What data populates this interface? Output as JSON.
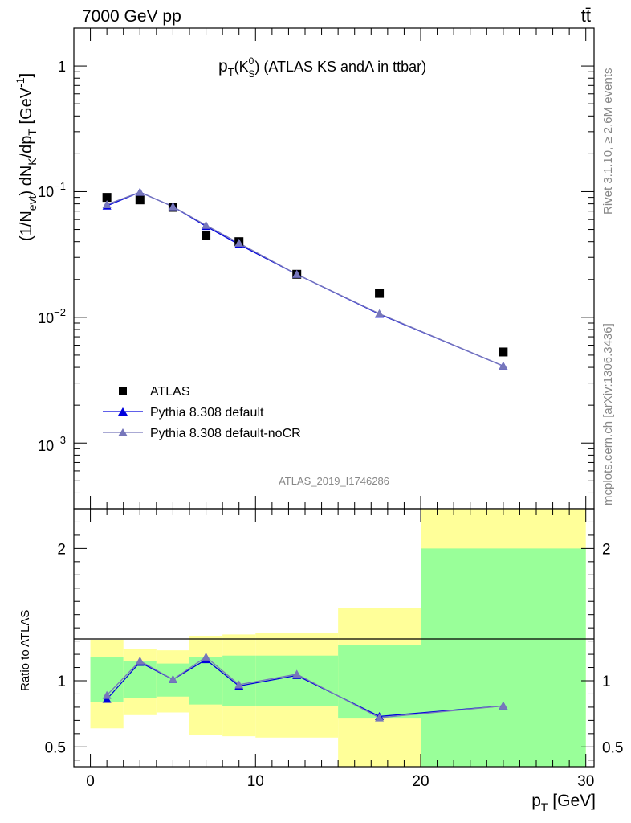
{
  "header": {
    "left": "7000 GeV pp",
    "right": "tt̄"
  },
  "side": {
    "rivet": "Rivet 3.1.10, ≥ 2.6M events",
    "mcplots": "mcplots.cern.ch [arXiv:1306.3436]"
  },
  "analysis_id": "ATLAS_2019_I1746286",
  "chart_data": [
    {
      "type": "line",
      "title": "p_T(K_S^0) (ATLAS KS and Λ in ttbar)",
      "ylabel": "(1/N_evt) dN_K/dp_T [GeV^-1]",
      "yscale": "log",
      "ylim": [
        0.0003,
        2.0
      ],
      "xlim": [
        -1,
        30.5
      ],
      "y_tick_labels": [
        "10^-3",
        "10^-2",
        "10^-1",
        "1"
      ],
      "legend_position": "bottom-left",
      "colors": {
        "data": "#000000",
        "default": "#0000dd",
        "noCR": "#7777bb"
      },
      "series": [
        {
          "name": "ATLAS",
          "style": "markers",
          "x": [
            1,
            3,
            5,
            7,
            9,
            12.5,
            17.5,
            25
          ],
          "y": [
            0.09,
            0.086,
            0.075,
            0.045,
            0.04,
            0.022,
            0.0155,
            0.0053
          ]
        },
        {
          "name": "Pythia 8.308 default",
          "style": "line-markers",
          "x": [
            1,
            3,
            5,
            7,
            9,
            12.5,
            17.5,
            25
          ],
          "y": [
            0.077,
            0.099,
            0.076,
            0.053,
            0.038,
            0.022,
            0.0106,
            0.0041
          ]
        },
        {
          "name": "Pythia 8.308 default-noCR",
          "style": "line-markers",
          "x": [
            1,
            3,
            5,
            7,
            9,
            12.5,
            17.5,
            25
          ],
          "y": [
            0.079,
            0.099,
            0.076,
            0.054,
            0.039,
            0.022,
            0.0107,
            0.0041
          ]
        }
      ]
    },
    {
      "type": "line",
      "ylabel": "Ratio to ATLAS",
      "xlabel": "p_T [GeV]",
      "ylim": [
        0.35,
        2.3
      ],
      "xlim": [
        -1,
        30.5
      ],
      "y_ticks": [
        0.5,
        1,
        2
      ],
      "x_ticks": [
        0,
        10,
        20,
        30
      ],
      "reference_line": 1,
      "colors": {
        "inner_band": "#99ff99",
        "outer_band": "#ffff99"
      },
      "bins": [
        {
          "lo": 0,
          "hi": 2,
          "inner": [
            0.84,
            1.18
          ],
          "outer": [
            0.64,
            1.31
          ]
        },
        {
          "lo": 2,
          "hi": 4,
          "inner": [
            0.87,
            1.15
          ],
          "outer": [
            0.74,
            1.24
          ]
        },
        {
          "lo": 4,
          "hi": 6,
          "inner": [
            0.88,
            1.13
          ],
          "outer": [
            0.76,
            1.23
          ]
        },
        {
          "lo": 6,
          "hi": 8,
          "inner": [
            0.82,
            1.18
          ],
          "outer": [
            0.59,
            1.34
          ]
        },
        {
          "lo": 8,
          "hi": 10,
          "inner": [
            0.81,
            1.19
          ],
          "outer": [
            0.58,
            1.35
          ]
        },
        {
          "lo": 10,
          "hi": 15,
          "inner": [
            0.81,
            1.19
          ],
          "outer": [
            0.57,
            1.36
          ]
        },
        {
          "lo": 15,
          "hi": 20,
          "inner": [
            0.72,
            1.27
          ],
          "outer": [
            0.3,
            1.55
          ]
        },
        {
          "lo": 20,
          "hi": 30,
          "inner": [
            0.3,
            2.0
          ],
          "outer": [
            0.3,
            2.6
          ]
        }
      ],
      "series": [
        {
          "name": "Pythia 8.308 default",
          "x": [
            1,
            3,
            5,
            7,
            9,
            12.5,
            17.5,
            25
          ],
          "y": [
            0.86,
            1.14,
            1.01,
            1.16,
            0.96,
            1.04,
            0.73,
            0.81
          ]
        },
        {
          "name": "Pythia 8.308 default-noCR",
          "x": [
            1,
            3,
            5,
            7,
            9,
            12.5,
            17.5,
            25
          ],
          "y": [
            0.89,
            1.15,
            1.01,
            1.18,
            0.97,
            1.05,
            0.72,
            0.81
          ]
        }
      ]
    }
  ]
}
